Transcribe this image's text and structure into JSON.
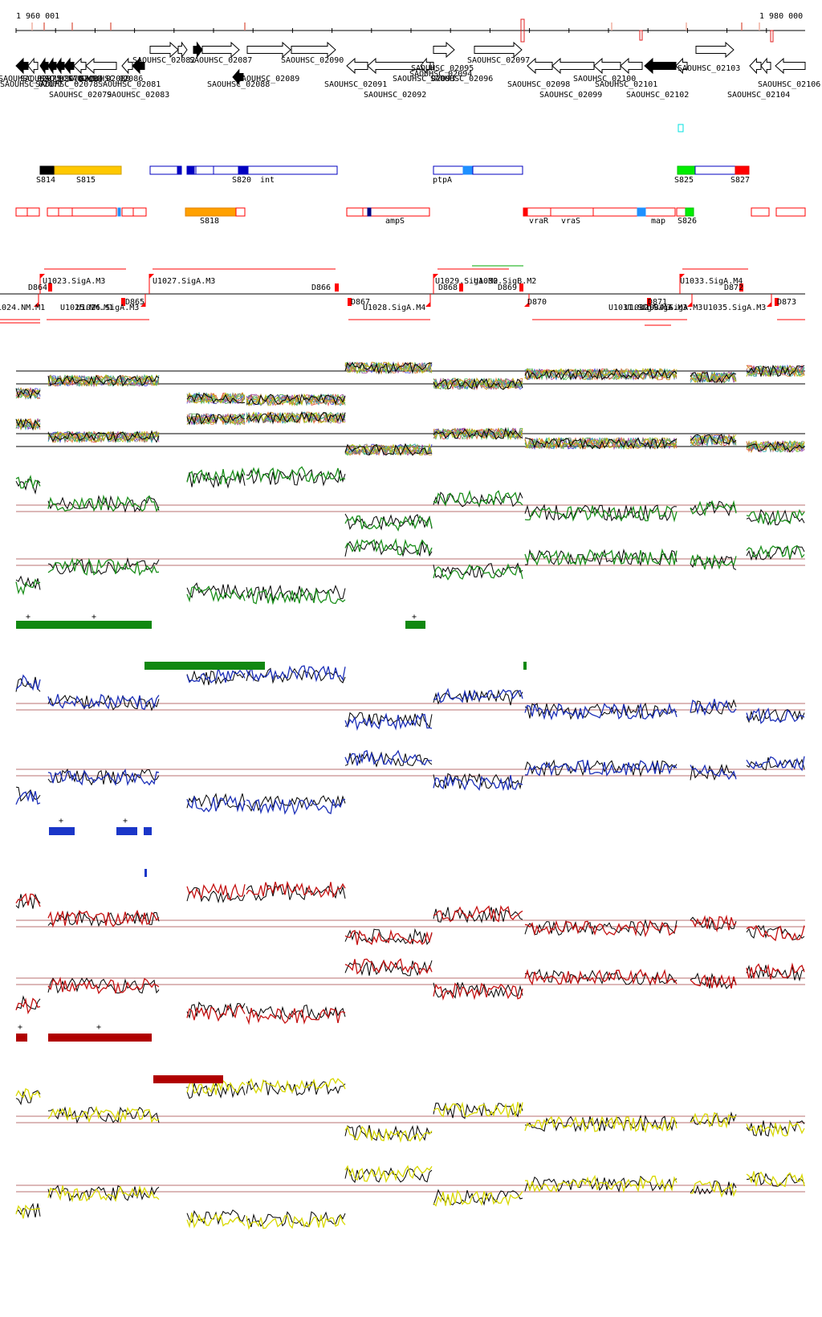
{
  "coords": {
    "start": "1 960 001",
    "end": "1 980 000"
  },
  "genes_top": [
    "SAOUHSC_02082",
    "SAOUHSC_02087",
    "SAOUHSC_02090",
    "SAOUHSC_02095",
    "SAOUHSC_02097",
    "SAOUHSC_02103"
  ],
  "genes_bottom": [
    "SAOUHSC_02075",
    "SAOUHSC_02076",
    "SAOUHSC_02077",
    "SAOUHSC_02078",
    "SAOUHSC_02079",
    "SAOUHSC_02080",
    "SAOUHSC_02081",
    "SAOUHSC_02083",
    "SAOUHSC_02084",
    "SAOUHSC_02086",
    "SAOUHSC_02088",
    "SAOUHSC_02089",
    "SAOUHSC_02091",
    "SAOUHSC_02092",
    "SAOUHSC_02093",
    "SAOUHSC_02094",
    "SAOUHSC_02096",
    "SAOUHSC_02098",
    "SAOUHSC_02099",
    "SAOUHSC_02100",
    "SAOUHSC_02101",
    "SAOUHSC_02102",
    "SAOUHSC_02104",
    "SAOUHSC_02106"
  ],
  "segments_blue_row": [
    "S814",
    "S815",
    "S820",
    "int",
    "ptpA",
    "S825",
    "S827"
  ],
  "segments_red_row": [
    "S818",
    "ampS",
    "vraR",
    "vraS",
    "map",
    "S826"
  ],
  "upstream_labels": [
    "U1023.SigA.M3",
    "U1027.SigA.M3",
    "U1029.SigA.M2",
    "U1030.SigB.M2",
    "U1033.SigA.M4",
    "U1024.NM.M1",
    "U1025.NM.M1",
    "U1026.SigA.M3",
    "U1028.SigA.M4",
    "U1031.SigA.M3",
    "U1032.SigA.M3",
    "U1034.SigA.M3",
    "U1035.SigA.M3"
  ],
  "downstream_labels": [
    "D864",
    "D865",
    "D866",
    "D867",
    "D868",
    "D869",
    "D870",
    "D871",
    "D872",
    "D873"
  ],
  "strand_marks": {
    "plus": "+",
    "minus": "-"
  },
  "colors": {
    "gene_outline": "#000000",
    "feature_red": "#ff0000",
    "feature_blue": "#0000c0",
    "segment_gold": "#ffc800",
    "segment_orange": "#ffa000",
    "segment_green": "#00ee00",
    "cluster_green": "#118811",
    "cluster_blue": "#1a36c8",
    "cluster_darkred": "#b00000",
    "track_green": "#1b8f1b",
    "track_blue": "#1c2fb8",
    "track_red": "#c41010",
    "track_yellow": "#d8d800",
    "threshold_line": "#a04040"
  }
}
